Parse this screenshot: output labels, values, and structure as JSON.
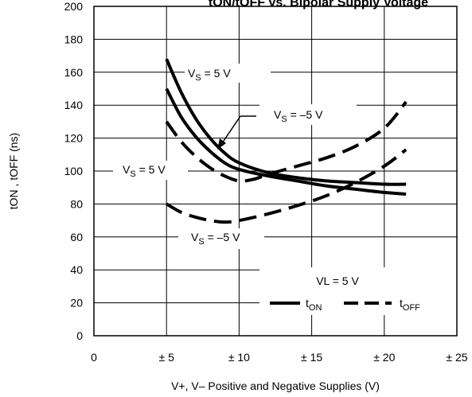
{
  "chart_data": {
    "type": "line",
    "title": "tON/tOFF vs. Bipolar Supply Voltage",
    "xlabel": "V+, V– Positive and Negative Supplies (V)",
    "ylabel": "tON , tOFF (ns)",
    "xlim": [
      0,
      25
    ],
    "ylim": [
      0,
      200
    ],
    "x_ticks": [
      0,
      5,
      10,
      15,
      20,
      25
    ],
    "x_tick_labels": [
      "0",
      "± 5",
      "± 10",
      "± 15",
      "± 20",
      "± 25"
    ],
    "y_ticks": [
      0,
      20,
      40,
      60,
      80,
      100,
      120,
      140,
      160,
      180,
      200
    ],
    "y_tick_labels": [
      "0",
      "20",
      "40",
      "60",
      "80",
      "100",
      "120",
      "140",
      "160",
      "180",
      "200"
    ],
    "grid": true,
    "legend_title": "VL = 5 V",
    "legend": [
      {
        "base": "t",
        "sub": "ON",
        "style": "solid"
      },
      {
        "base": "t",
        "sub": "OFF",
        "style": "dashed"
      }
    ],
    "series": [
      {
        "style": "solid",
        "x": [
          5,
          6,
          7,
          8,
          9,
          10,
          12,
          14,
          16,
          18,
          20,
          21.5
        ],
        "y": [
          168,
          148,
          132,
          120,
          111,
          105,
          99,
          96,
          94,
          93,
          92,
          92
        ]
      },
      {
        "style": "solid",
        "x": [
          5,
          6,
          7,
          8,
          9,
          10,
          12,
          14,
          16,
          18,
          20,
          21.5
        ],
        "y": [
          150,
          133,
          121,
          112,
          105,
          101,
          97,
          94,
          91,
          89,
          87,
          86
        ]
      },
      {
        "style": "dashed",
        "x": [
          5,
          6,
          7,
          8,
          9,
          10,
          11,
          12,
          14,
          16,
          18,
          20,
          21.5
        ],
        "y": [
          130,
          118,
          109,
          102,
          97,
          94,
          95,
          98,
          103,
          108,
          115,
          126,
          142
        ]
      },
      {
        "style": "dashed",
        "x": [
          5,
          6,
          7,
          8,
          9,
          10,
          12,
          14,
          16,
          18,
          20,
          21.5
        ],
        "y": [
          80,
          75,
          72,
          70,
          69,
          70,
          74,
          79,
          85,
          93,
          103,
          113
        ]
      }
    ],
    "annotations": [
      {
        "base": "V",
        "sub": "S",
        "text": " = 5 V"
      },
      {
        "base": "V",
        "sub": "S",
        "text": " = –5 V"
      },
      {
        "base": "V",
        "sub": "S",
        "text": " = 5 V"
      },
      {
        "base": "V",
        "sub": "S",
        "text": " = –5 V"
      }
    ]
  }
}
